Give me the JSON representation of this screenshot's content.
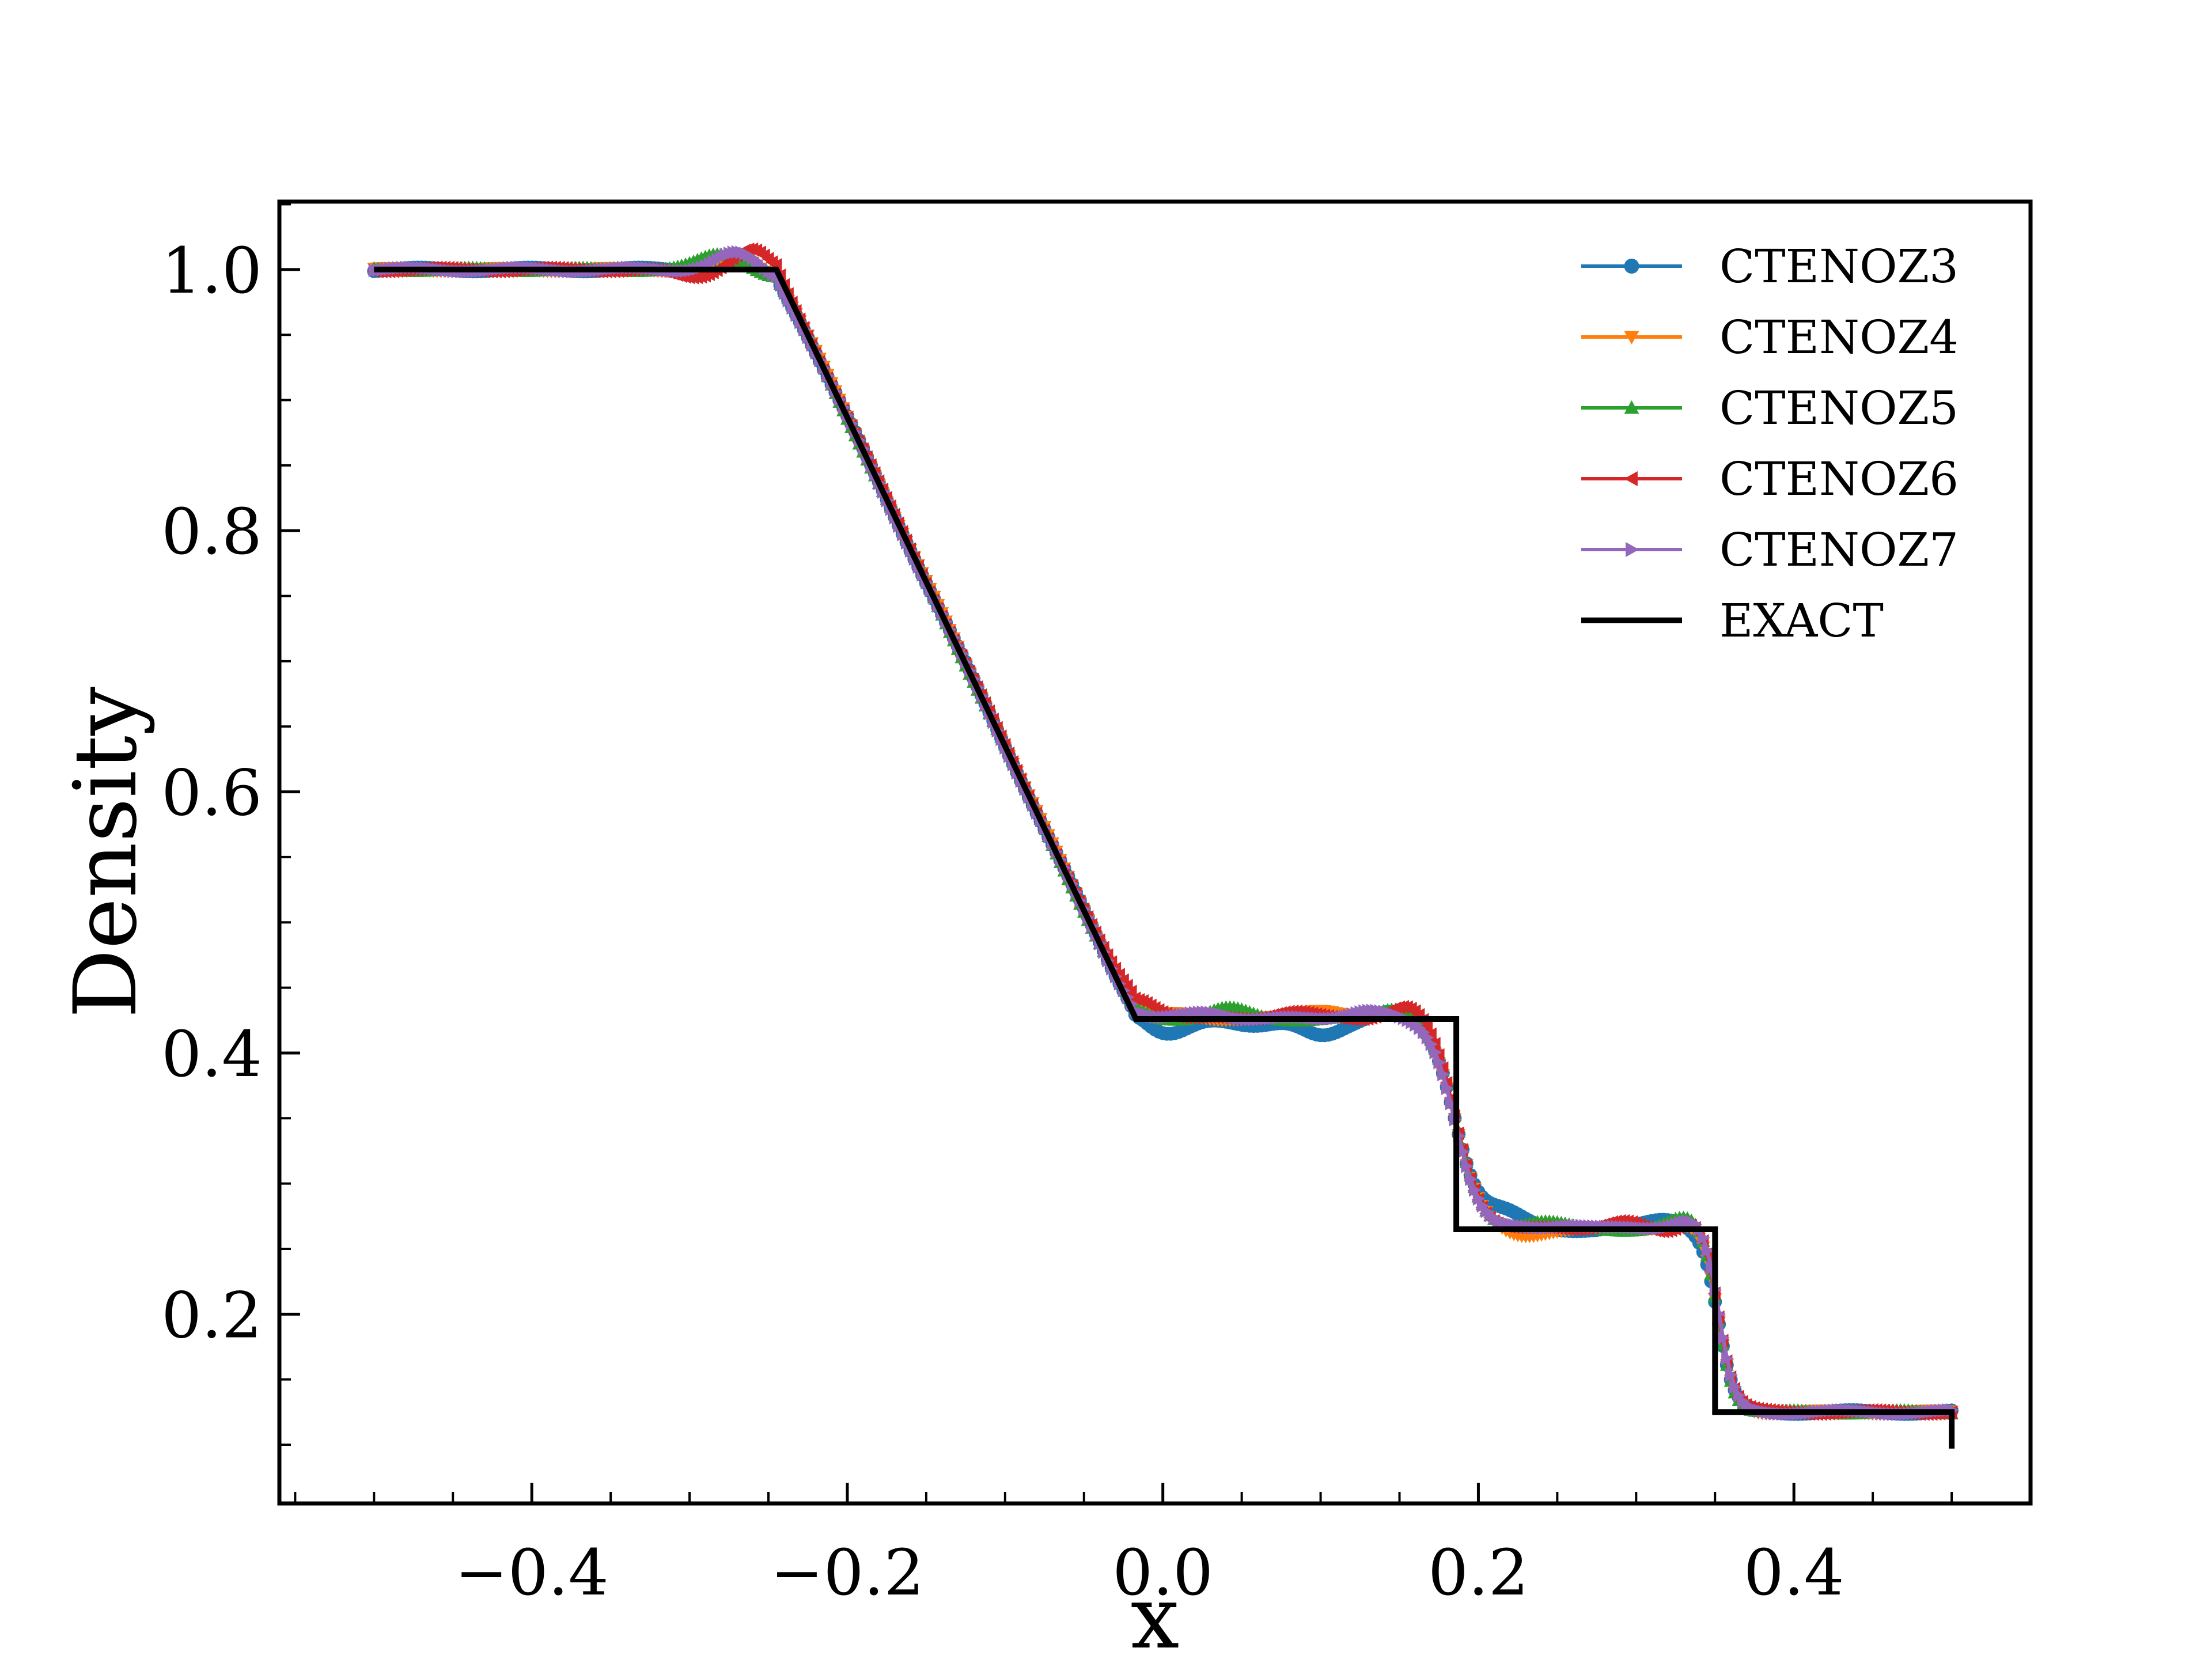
{
  "chart_data": {
    "type": "line",
    "title": "",
    "xlabel": "x",
    "ylabel": "Density",
    "xlim": [
      -0.56,
      0.55
    ],
    "ylim": [
      0.055,
      1.052
    ],
    "xticks": [
      -0.4,
      -0.2,
      0.0,
      0.2,
      0.4
    ],
    "xtick_labels": [
      "−0.4",
      "−0.2",
      "0.0",
      "0.2",
      "0.4"
    ],
    "yticks": [
      0.2,
      0.4,
      0.6,
      0.8,
      1.0
    ],
    "ytick_labels": [
      "0.2",
      "0.4",
      "0.6",
      "0.8",
      "1.0"
    ],
    "grid": false,
    "legend_position": "top-right",
    "series": [
      {
        "name": "CTENOZ3",
        "color": "#1f77b4",
        "marker": "circle",
        "perturb": [
          [
            -0.275,
            0.007
          ],
          [
            0.005,
            -0.012
          ],
          [
            0.06,
            -0.004
          ],
          [
            0.1,
            -0.013
          ],
          [
            0.145,
            0.006
          ],
          [
            0.215,
            0.012
          ],
          [
            0.32,
            0.008
          ]
        ]
      },
      {
        "name": "CTENOZ4",
        "color": "#ff7f0e",
        "marker": "triangle-down",
        "perturb": [
          [
            -0.27,
            0.01
          ],
          [
            0.01,
            0.004
          ],
          [
            0.1,
            0.008
          ],
          [
            0.14,
            0.004
          ],
          [
            0.225,
            -0.006
          ],
          [
            0.33,
            0.005
          ]
        ]
      },
      {
        "name": "CTENOZ5",
        "color": "#2ca02c",
        "marker": "triangle-up",
        "perturb": [
          [
            -0.28,
            0.012
          ],
          [
            0.04,
            0.008
          ],
          [
            0.15,
            0.01
          ],
          [
            0.24,
            0.006
          ],
          [
            0.335,
            0.01
          ]
        ]
      },
      {
        "name": "CTENOZ6",
        "color": "#d62728",
        "marker": "triangle-left",
        "perturb": [
          [
            -0.3,
            -0.006
          ],
          [
            -0.26,
            0.016
          ],
          [
            -0.012,
            0.01
          ],
          [
            0.08,
            0.006
          ],
          [
            0.155,
            0.012
          ],
          [
            0.29,
            0.007
          ],
          [
            0.32,
            -0.006
          ],
          [
            0.34,
            0.012
          ]
        ]
      },
      {
        "name": "CTENOZ7",
        "color": "#9467bd",
        "marker": "triangle-right",
        "perturb": [
          [
            -0.27,
            0.012
          ],
          [
            0.03,
            0.005
          ],
          [
            0.13,
            0.007
          ],
          [
            0.26,
            0.004
          ],
          [
            0.34,
            0.012
          ]
        ]
      },
      {
        "name": "EXACT",
        "color": "#000000",
        "marker": "none",
        "x": [
          -0.5,
          -0.245,
          -0.017,
          0.186,
          0.186,
          0.35,
          0.35,
          0.5,
          0.5
        ],
        "y": [
          1.0,
          1.0,
          0.426,
          0.426,
          0.265,
          0.265,
          0.125,
          0.125,
          0.097
        ]
      }
    ]
  }
}
